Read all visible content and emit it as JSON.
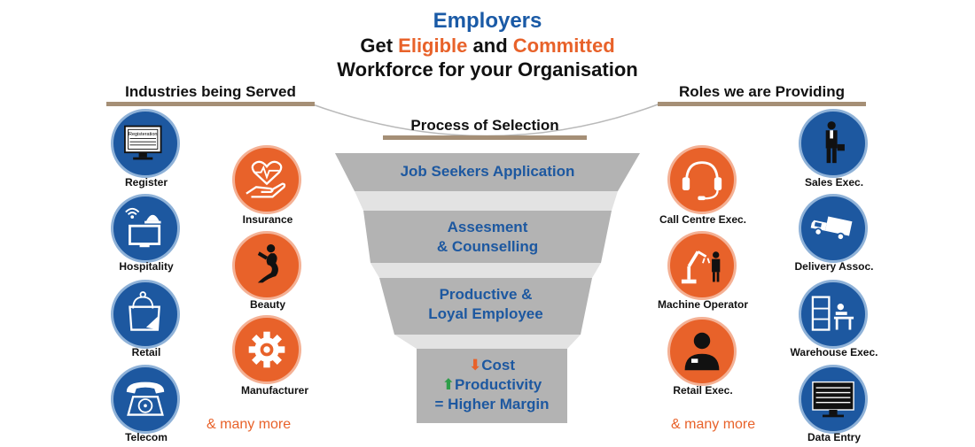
{
  "header": {
    "title": "Employers",
    "line2": {
      "pre": "Get ",
      "hl1": "Eligible",
      "mid": " and ",
      "hl2": "Committed"
    },
    "line3": "Workforce for your Organisation"
  },
  "sections": {
    "industries": "Industries being Served",
    "roles": "Roles we are Providing",
    "process": "Process of Selection"
  },
  "industries": {
    "col1": [
      {
        "label": "Register",
        "icon": "registration-screen-icon",
        "screen_text": "Registeration"
      },
      {
        "label": "Hospitality",
        "icon": "hotel-bell-icon"
      },
      {
        "label": "Retail",
        "icon": "shopping-bag-icon"
      },
      {
        "label": "Telecom",
        "icon": "telephone-icon"
      }
    ],
    "col2": [
      {
        "label": "Insurance",
        "icon": "heart-hand-icon"
      },
      {
        "label": "Beauty",
        "icon": "woman-figure-icon"
      },
      {
        "label": "Manufacturer",
        "icon": "gear-icon"
      }
    ],
    "more": "& many more"
  },
  "roles": {
    "col1": [
      {
        "label": "Call Centre Exec.",
        "icon": "headset-icon"
      },
      {
        "label": "Machine Operator",
        "icon": "robot-arm-icon"
      },
      {
        "label": "Retail Exec.",
        "icon": "retail-person-icon"
      }
    ],
    "col2": [
      {
        "label": "Sales Exec.",
        "icon": "businessman-icon"
      },
      {
        "label": "Delivery Assoc.",
        "icon": "delivery-truck-icon"
      },
      {
        "label": "Warehouse Exec.",
        "icon": "warehouse-icon"
      },
      {
        "label": "Data Entry",
        "icon": "monitor-icon"
      }
    ],
    "more": "& many more"
  },
  "funnel": {
    "step1": "Job Seekers Application",
    "step2": [
      "Assesment",
      "& Counselling"
    ],
    "step3": [
      "Productive &",
      "Loyal Employee"
    ],
    "result": [
      "Cost",
      "Productivity",
      "= Higher Margin"
    ]
  },
  "colors": {
    "blue": "#1d58a0",
    "orange": "#e8622a",
    "funnel_gray": "#b3b3b3",
    "down_arrow": "#e8622a",
    "up_arrow": "#2e9e4a"
  }
}
